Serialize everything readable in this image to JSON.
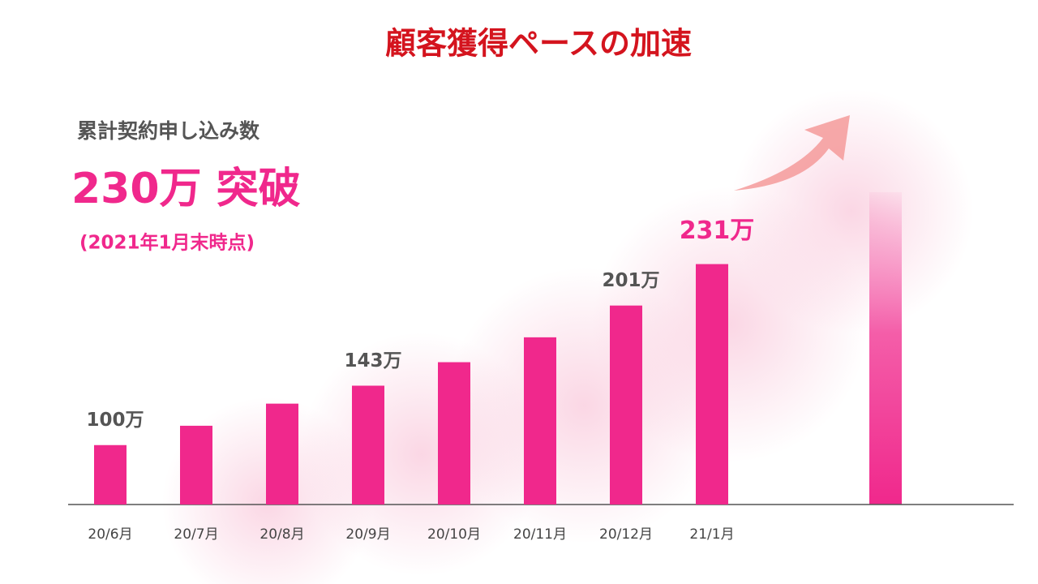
{
  "chart_data": {
    "type": "bar",
    "title": "顧客獲得ペースの加速",
    "annotations": {
      "subtitle": "累計契約申し込み数",
      "headline": "230万 突破",
      "note": "(2021年1月末時点)"
    },
    "categories": [
      "20/6月",
      "20/7月",
      "20/8月",
      "20/9月",
      "20/10月",
      "20/11月",
      "20/12月",
      "21/1月"
    ],
    "values": [
      100,
      114,
      130,
      143,
      160,
      178,
      201,
      231
    ],
    "value_labels": [
      "100万",
      null,
      null,
      "143万",
      null,
      null,
      "201万",
      "231万"
    ],
    "color": "#f0288c",
    "ylim": [
      57,
      283
    ]
  }
}
